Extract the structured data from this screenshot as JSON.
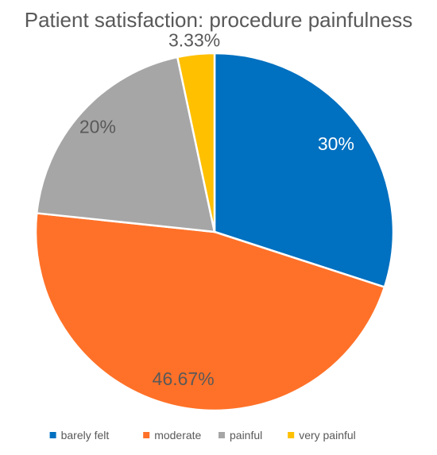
{
  "chart_data": {
    "type": "pie",
    "title": "Patient satisfaction: procedure painfulness",
    "categories": [
      "barely felt",
      "moderate",
      "painful",
      "very painful"
    ],
    "values": [
      30,
      46.67,
      20,
      3.33
    ],
    "data_labels": [
      "30%",
      "46.67%",
      "20%",
      "3.33%"
    ],
    "colors": [
      "#0070C0",
      "#FF7128",
      "#A6A6A6",
      "#FFC000"
    ],
    "label_colors": [
      "#ffffff",
      "#595959",
      "#595959",
      "#595959"
    ],
    "legend_position": "bottom",
    "start_angle_deg": 0,
    "direction": "clockwise"
  }
}
